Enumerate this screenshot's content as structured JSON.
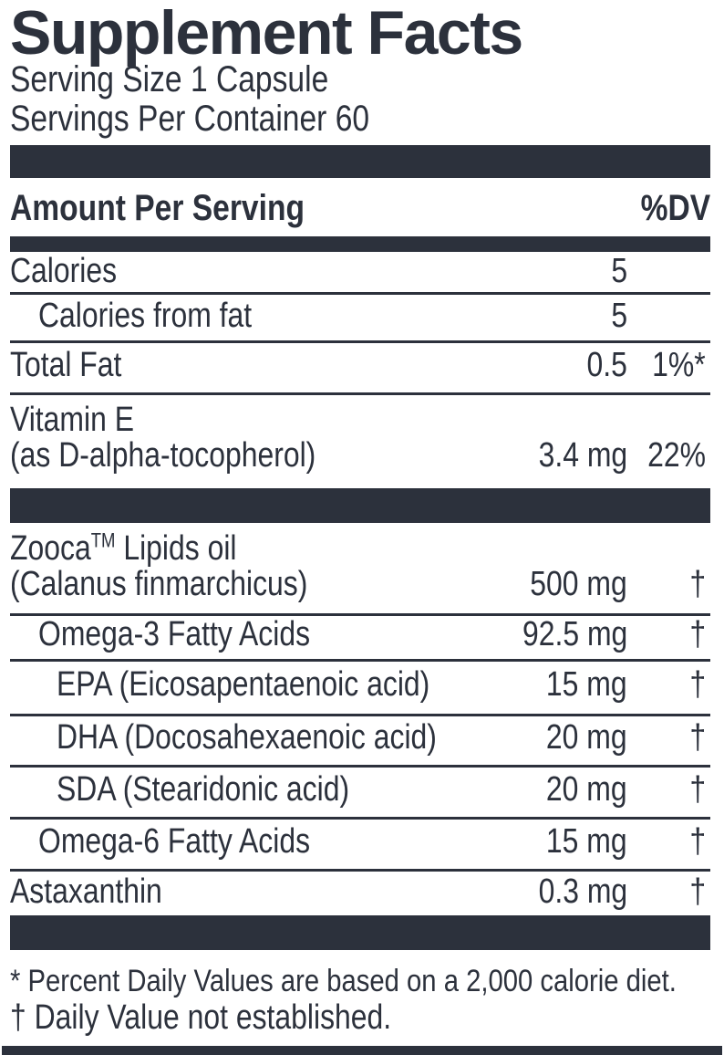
{
  "colors": {
    "ink": "#2c313c",
    "background": "#ffffff"
  },
  "label": {
    "title": "Supplement Facts",
    "serving_size": "Serving Size 1 Capsule",
    "servings_per_container": "Servings Per Container 60",
    "columns": {
      "amount_header": "Amount Per Serving",
      "dv_header": "%DV"
    },
    "rows": [
      {
        "name": "Calories",
        "indent": 0,
        "amount": "5",
        "dv": ""
      },
      {
        "name": "Calories from fat",
        "indent": 1,
        "amount": "5",
        "dv": ""
      },
      {
        "name": "Total Fat",
        "indent": 0,
        "amount": "0.5",
        "dv": "1%*"
      },
      {
        "name": "Vitamin E",
        "name_line2": "(as D-alpha-tocopherol)",
        "indent": 0,
        "amount": "3.4 mg",
        "dv": "22%"
      },
      {
        "name": "Zooca",
        "trademark": "TM",
        "name_suffix": " Lipids oil",
        "name_line2": "(Calanus finmarchicus)",
        "indent": 0,
        "amount": "500 mg",
        "dv": "†"
      },
      {
        "name": "Omega-3 Fatty Acids",
        "indent": 1,
        "amount": "92.5 mg",
        "dv": "†"
      },
      {
        "name": "EPA (Eicosapentaenoic acid)",
        "indent": 2,
        "amount": "15 mg",
        "dv": "†"
      },
      {
        "name": "DHA (Docosahexaenoic acid)",
        "indent": 2,
        "amount": "20 mg",
        "dv": "†"
      },
      {
        "name": "SDA (Stearidonic acid)",
        "indent": 2,
        "amount": "20 mg",
        "dv": "†"
      },
      {
        "name": "Omega-6 Fatty Acids",
        "indent": 1,
        "amount": "15 mg",
        "dv": "†"
      },
      {
        "name": "Astaxanthin",
        "indent": 0,
        "amount": "0.3 mg",
        "dv": "†"
      }
    ],
    "footnotes": [
      "* Percent Daily Values are based on a 2,000 calorie diet.",
      "† Daily Value not established."
    ]
  }
}
